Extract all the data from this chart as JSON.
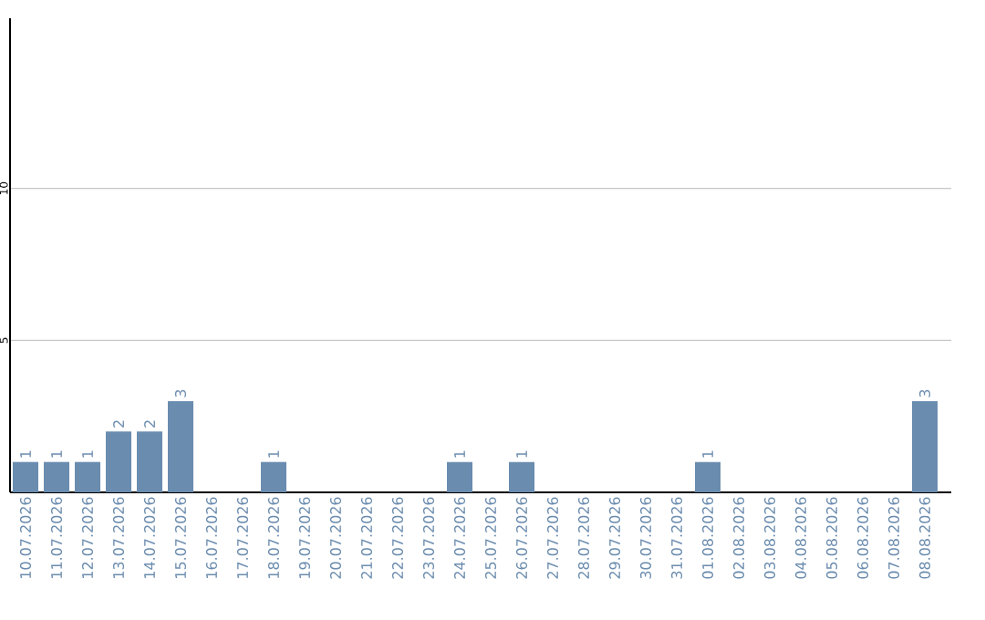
{
  "chart_data": {
    "type": "bar",
    "categories": [
      "10.07.2026",
      "11.07.2026",
      "12.07.2026",
      "13.07.2026",
      "14.07.2026",
      "15.07.2026",
      "16.07.2026",
      "17.07.2026",
      "18.07.2026",
      "19.07.2026",
      "20.07.2026",
      "21.07.2026",
      "22.07.2026",
      "23.07.2026",
      "24.07.2026",
      "25.07.2026",
      "26.07.2026",
      "27.07.2026",
      "28.07.2026",
      "29.07.2026",
      "30.07.2026",
      "31.07.2026",
      "01.08.2026",
      "02.08.2026",
      "03.08.2026",
      "04.08.2026",
      "05.08.2026",
      "06.08.2026",
      "07.08.2026",
      "08.08.2026"
    ],
    "values": [
      1,
      1,
      1,
      2,
      2,
      3,
      0,
      0,
      1,
      0,
      0,
      0,
      0,
      0,
      1,
      0,
      1,
      0,
      0,
      0,
      0,
      0,
      1,
      0,
      0,
      0,
      0,
      0,
      0,
      3
    ],
    "value_labels": [
      "1",
      "1",
      "1",
      "2",
      "2",
      "3",
      null,
      null,
      "1",
      null,
      null,
      null,
      null,
      null,
      "1",
      null,
      "1",
      null,
      null,
      null,
      null,
      null,
      "1",
      null,
      null,
      null,
      null,
      null,
      null,
      "3"
    ],
    "color": "#6a8caf",
    "ylim": [
      0,
      15.6
    ],
    "yticks": [
      5,
      10
    ],
    "grid": "y"
  }
}
